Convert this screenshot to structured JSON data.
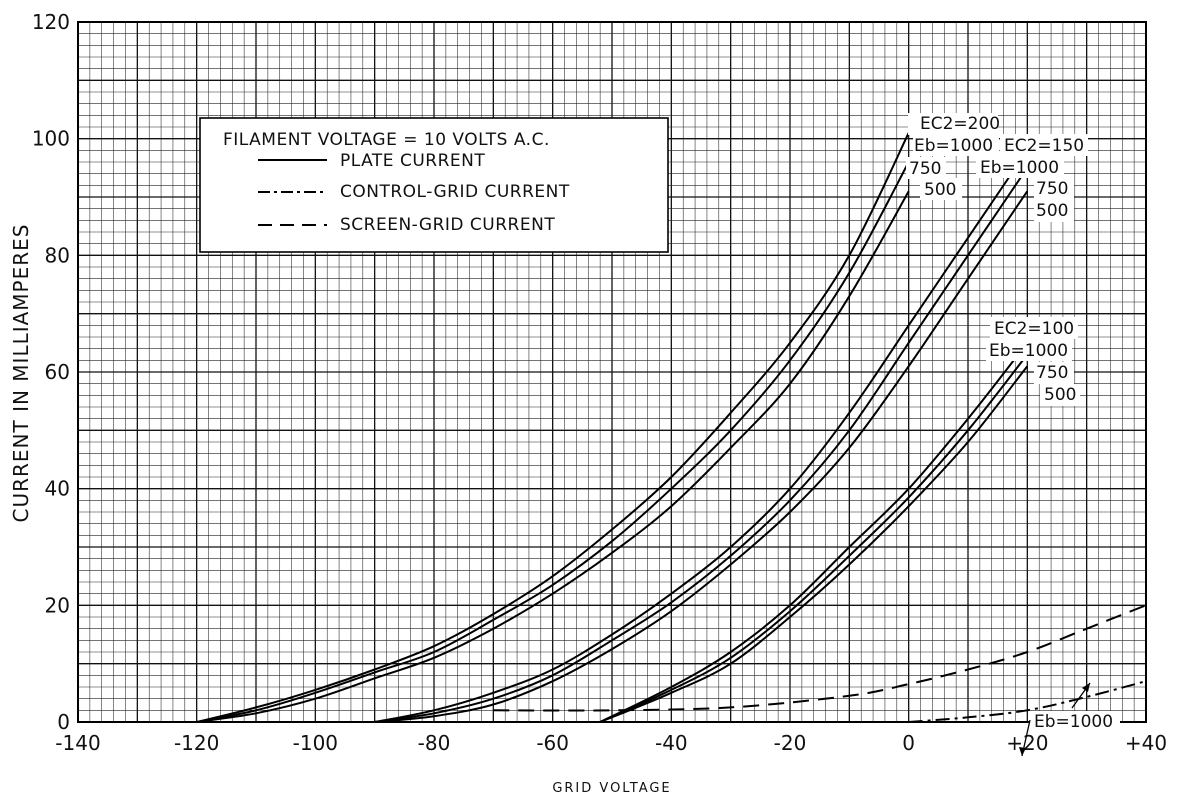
{
  "chart_data": {
    "type": "line",
    "title": "",
    "xlabel": "GRID VOLTAGE",
    "ylabel": "CURRENT IN MILLIAMPERES",
    "xlim": [
      -140,
      40
    ],
    "ylim": [
      0,
      120
    ],
    "x_ticks": [
      "-140",
      "-120",
      "-100",
      "-80",
      "-60",
      "-40",
      "-20",
      "0",
      "+20",
      "+40"
    ],
    "y_ticks": [
      "0",
      "20",
      "40",
      "60",
      "80",
      "100",
      "120"
    ],
    "grid": true,
    "legend": {
      "placement": "upper-left",
      "title": "FILAMENT VOLTAGE = 10 VOLTS A.C.",
      "entries": [
        {
          "label": "PLATE CURRENT",
          "style": "solid"
        },
        {
          "label": "CONTROL-GRID CURRENT",
          "style": "dash-dot"
        },
        {
          "label": "SCREEN-GRID CURRENT",
          "style": "dashed"
        }
      ]
    },
    "series": [
      {
        "group": "EC2=200",
        "eb": "1000",
        "style": "solid",
        "x": [
          -120,
          -110,
          -100,
          -90,
          -80,
          -70,
          -60,
          -50,
          -40,
          -30,
          -20,
          -10,
          0
        ],
        "y": [
          0,
          2.5,
          5.5,
          9,
          13,
          18.5,
          25,
          33,
          42,
          53,
          65,
          80,
          101
        ]
      },
      {
        "group": "EC2=200",
        "eb": "750",
        "style": "solid",
        "x": [
          -120,
          -110,
          -100,
          -90,
          -80,
          -70,
          -60,
          -50,
          -40,
          -30,
          -20,
          -10,
          0
        ],
        "y": [
          0,
          2,
          5,
          8.5,
          12,
          17.5,
          23.5,
          31,
          40,
          50,
          62,
          77,
          96
        ]
      },
      {
        "group": "EC2=200",
        "eb": "500",
        "style": "solid",
        "x": [
          -120,
          -110,
          -100,
          -90,
          -80,
          -70,
          -60,
          -50,
          -40,
          -30,
          -20,
          -10,
          0
        ],
        "y": [
          0,
          1.5,
          4,
          7.5,
          11,
          16,
          22,
          29,
          37,
          47,
          58,
          73,
          91
        ]
      },
      {
        "group": "EC2=150",
        "eb": "1000",
        "style": "solid",
        "x": [
          -90,
          -80,
          -70,
          -60,
          -50,
          -40,
          -30,
          -20,
          -10,
          0,
          10,
          20
        ],
        "y": [
          0,
          2,
          5,
          9,
          15,
          22,
          30,
          40,
          53,
          68,
          83,
          98
        ]
      },
      {
        "group": "EC2=150",
        "eb": "750",
        "style": "solid",
        "x": [
          -90,
          -80,
          -70,
          -60,
          -50,
          -40,
          -30,
          -20,
          -10,
          0,
          10,
          20
        ],
        "y": [
          0,
          1.5,
          4,
          8,
          14,
          20.5,
          28.5,
          38,
          50,
          65,
          80,
          95
        ]
      },
      {
        "group": "EC2=150",
        "eb": "500",
        "style": "solid",
        "x": [
          -90,
          -80,
          -70,
          -60,
          -50,
          -40,
          -30,
          -20,
          -10,
          0,
          10,
          20
        ],
        "y": [
          0,
          1,
          3,
          7,
          12.5,
          19,
          27,
          36,
          47,
          61,
          76,
          91
        ]
      },
      {
        "group": "EC2=100",
        "eb": "1000",
        "style": "solid",
        "x": [
          -52,
          -40,
          -30,
          -20,
          -10,
          0,
          10,
          20
        ],
        "y": [
          0,
          6,
          12,
          20,
          30,
          40,
          52,
          65
        ]
      },
      {
        "group": "EC2=100",
        "eb": "750",
        "style": "solid",
        "x": [
          -52,
          -40,
          -30,
          -20,
          -10,
          0,
          10,
          20
        ],
        "y": [
          0,
          5.5,
          11,
          19,
          28.5,
          38.5,
          50,
          63
        ]
      },
      {
        "group": "EC2=100",
        "eb": "500",
        "style": "solid",
        "x": [
          -52,
          -40,
          -30,
          -20,
          -10,
          0,
          10,
          20
        ],
        "y": [
          0,
          5,
          10,
          18,
          27,
          37,
          48,
          61
        ]
      },
      {
        "group": "screen-grid",
        "eb": "1000",
        "style": "dashed",
        "x": [
          -70,
          -50,
          -30,
          -10,
          0,
          10,
          20,
          30,
          40
        ],
        "y": [
          2,
          2,
          2.5,
          4.5,
          6.5,
          9,
          12,
          16,
          20
        ]
      },
      {
        "group": "control-grid",
        "eb": "1000",
        "style": "dash-dot",
        "x": [
          0,
          10,
          20,
          30,
          40
        ],
        "y": [
          0,
          0.8,
          2,
          4.3,
          7
        ]
      }
    ],
    "annotations": {
      "ec2_200": "EC2=200",
      "eb_200": "Eb=1000",
      "ec2_150": "EC2=150",
      "eb_150": "Eb=1000",
      "ec2_100": "EC2=100",
      "eb_100": "Eb=1000",
      "eb_screen": "Eb=1000",
      "v750": "750",
      "v500": "500"
    }
  }
}
